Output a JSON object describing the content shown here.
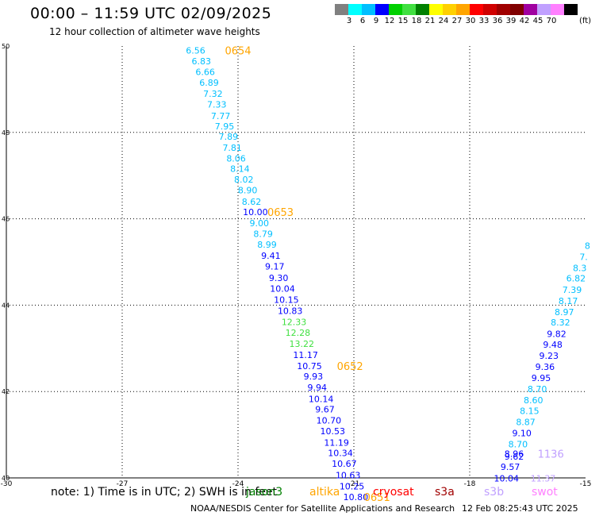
{
  "header": {
    "title": "00:00 – 11:59 UTC 02/09/2025",
    "subtitle": "12 hour collection of altimeter wave heights"
  },
  "colorbar": {
    "unit": "(ft)",
    "colors": [
      "#808080",
      "#00ffff",
      "#00bfff",
      "#0000ff",
      "#00d000",
      "#40e040",
      "#008000",
      "#ffff00",
      "#ffd000",
      "#ffa500",
      "#ff0000",
      "#d00000",
      "#a00000",
      "#800000",
      "#a000a0",
      "#c0a0ff",
      "#ff80ff",
      "#000000"
    ],
    "labels": [
      "3",
      "6",
      "9",
      "12",
      "15",
      "18",
      "21",
      "24",
      "27",
      "30",
      "33",
      "36",
      "39",
      "42",
      "45",
      "70"
    ]
  },
  "chart_data": {
    "type": "scatter",
    "xlim": [
      -30,
      -15
    ],
    "ylim": [
      40,
      50
    ],
    "x_ticks": [
      "-30",
      "-27",
      "-24",
      "-21",
      "-18",
      "-15"
    ],
    "y_ticks": [
      "50",
      "48",
      "46",
      "44",
      "42",
      "40"
    ],
    "grid": true,
    "tracks": [
      {
        "name": "track-west",
        "points": [
          {
            "x": -25.1,
            "y": 49.9,
            "v": "6.56",
            "c": "#00bfff"
          },
          {
            "x": -24.95,
            "y": 49.65,
            "v": "6.83",
            "c": "#00bfff"
          },
          {
            "x": -24.85,
            "y": 49.4,
            "v": "6.66",
            "c": "#00bfff"
          },
          {
            "x": -24.75,
            "y": 49.15,
            "v": "6.89",
            "c": "#00bfff"
          },
          {
            "x": -24.65,
            "y": 48.9,
            "v": "7.32",
            "c": "#00bfff"
          },
          {
            "x": -24.55,
            "y": 48.65,
            "v": "7.33",
            "c": "#00bfff"
          },
          {
            "x": -24.45,
            "y": 48.38,
            "v": "7.77",
            "c": "#00bfff"
          },
          {
            "x": -24.35,
            "y": 48.14,
            "v": "7.95",
            "c": "#00bfff"
          },
          {
            "x": -24.25,
            "y": 47.9,
            "v": "7.89",
            "c": "#00bfff"
          },
          {
            "x": -24.15,
            "y": 47.65,
            "v": "7.81",
            "c": "#00bfff"
          },
          {
            "x": -24.05,
            "y": 47.4,
            "v": "8.06",
            "c": "#00bfff"
          },
          {
            "x": -23.95,
            "y": 47.16,
            "v": "8.14",
            "c": "#00bfff"
          },
          {
            "x": -23.85,
            "y": 46.91,
            "v": "8.02",
            "c": "#00bfff"
          },
          {
            "x": -23.75,
            "y": 46.66,
            "v": "8.90",
            "c": "#00bfff"
          },
          {
            "x": -23.65,
            "y": 46.4,
            "v": "8.62",
            "c": "#00bfff"
          },
          {
            "x": -23.55,
            "y": 46.16,
            "v": "10.00",
            "c": "#0000ff"
          },
          {
            "x": -23.45,
            "y": 45.9,
            "v": "9.00",
            "c": "#00bfff"
          },
          {
            "x": -23.35,
            "y": 45.65,
            "v": "8.79",
            "c": "#00bfff"
          },
          {
            "x": -23.25,
            "y": 45.4,
            "v": "8.99",
            "c": "#00bfff"
          },
          {
            "x": -23.15,
            "y": 45.15,
            "v": "9.41",
            "c": "#0000ff"
          },
          {
            "x": -23.05,
            "y": 44.9,
            "v": "9.17",
            "c": "#0000ff"
          },
          {
            "x": -22.95,
            "y": 44.63,
            "v": "9.30",
            "c": "#0000ff"
          },
          {
            "x": -22.85,
            "y": 44.38,
            "v": "10.04",
            "c": "#0000ff"
          },
          {
            "x": -22.75,
            "y": 44.13,
            "v": "10.15",
            "c": "#0000ff"
          },
          {
            "x": -22.65,
            "y": 43.87,
            "v": "10.83",
            "c": "#0000ff"
          },
          {
            "x": -22.55,
            "y": 43.61,
            "v": "12.33",
            "c": "#40e040"
          },
          {
            "x": -22.45,
            "y": 43.36,
            "v": "12.28",
            "c": "#40e040"
          },
          {
            "x": -22.35,
            "y": 43.11,
            "v": "13.22",
            "c": "#40e040"
          },
          {
            "x": -22.25,
            "y": 42.85,
            "v": "11.17",
            "c": "#0000ff"
          },
          {
            "x": -22.15,
            "y": 42.59,
            "v": "10.75",
            "c": "#0000ff"
          },
          {
            "x": -22.05,
            "y": 42.35,
            "v": "9.93",
            "c": "#0000ff"
          },
          {
            "x": -21.95,
            "y": 42.1,
            "v": "9.94",
            "c": "#0000ff"
          },
          {
            "x": -21.85,
            "y": 41.83,
            "v": "10.14",
            "c": "#0000ff"
          },
          {
            "x": -21.75,
            "y": 41.59,
            "v": "9.67",
            "c": "#0000ff"
          },
          {
            "x": -21.65,
            "y": 41.33,
            "v": "10.70",
            "c": "#0000ff"
          },
          {
            "x": -21.55,
            "y": 41.08,
            "v": "10.53",
            "c": "#0000ff"
          },
          {
            "x": -21.45,
            "y": 40.82,
            "v": "11.19",
            "c": "#0000ff"
          },
          {
            "x": -21.35,
            "y": 40.58,
            "v": "10.34",
            "c": "#0000ff"
          },
          {
            "x": -21.25,
            "y": 40.33,
            "v": "10.67",
            "c": "#0000ff"
          },
          {
            "x": -21.15,
            "y": 40.06,
            "v": "10.63",
            "c": "#0000ff"
          },
          {
            "x": -21.05,
            "y": 39.81,
            "v": "10.25",
            "c": "#0000ff"
          },
          {
            "x": -20.95,
            "y": 39.56,
            "v": "10.80",
            "c": "#0000ff"
          }
        ],
        "time_labels": [
          {
            "x": -24.0,
            "y": 49.9,
            "t": "0654"
          },
          {
            "x": -22.9,
            "y": 46.16,
            "t": "0653"
          },
          {
            "x": -21.1,
            "y": 42.59,
            "t": "0652"
          },
          {
            "x": -20.4,
            "y": 39.56,
            "t": "0651"
          }
        ]
      },
      {
        "name": "track-east",
        "points": [
          {
            "x": -14.95,
            "y": 45.38,
            "v": "8",
            "c": "#00bfff"
          },
          {
            "x": -15.05,
            "y": 45.12,
            "v": "7.",
            "c": "#00bfff"
          },
          {
            "x": -15.15,
            "y": 44.86,
            "v": "8.3",
            "c": "#00bfff"
          },
          {
            "x": -15.25,
            "y": 44.62,
            "v": "6.82",
            "c": "#00bfff"
          },
          {
            "x": -15.35,
            "y": 44.36,
            "v": "7.39",
            "c": "#00bfff"
          },
          {
            "x": -15.45,
            "y": 44.1,
            "v": "8.17",
            "c": "#00bfff"
          },
          {
            "x": -15.55,
            "y": 43.84,
            "v": "8.97",
            "c": "#00bfff"
          },
          {
            "x": -15.65,
            "y": 43.6,
            "v": "8.32",
            "c": "#00bfff"
          },
          {
            "x": -15.75,
            "y": 43.34,
            "v": "9.82",
            "c": "#0000ff"
          },
          {
            "x": -15.85,
            "y": 43.09,
            "v": "9.48",
            "c": "#0000ff"
          },
          {
            "x": -15.95,
            "y": 42.83,
            "v": "9.23",
            "c": "#0000ff"
          },
          {
            "x": -16.05,
            "y": 42.57,
            "v": "9.36",
            "c": "#0000ff"
          },
          {
            "x": -16.15,
            "y": 42.32,
            "v": "9.95",
            "c": "#0000ff"
          },
          {
            "x": -16.25,
            "y": 42.06,
            "v": "8.70",
            "c": "#00bfff"
          },
          {
            "x": -16.35,
            "y": 41.8,
            "v": "8.60",
            "c": "#00bfff"
          },
          {
            "x": -16.45,
            "y": 41.55,
            "v": "8.15",
            "c": "#00bfff"
          },
          {
            "x": -16.55,
            "y": 41.3,
            "v": "8.87",
            "c": "#00bfff"
          },
          {
            "x": -16.65,
            "y": 41.04,
            "v": "9.10",
            "c": "#0000ff"
          },
          {
            "x": -16.75,
            "y": 40.78,
            "v": "8.70",
            "c": "#00bfff"
          },
          {
            "x": -16.85,
            "y": 40.56,
            "v": "8.96",
            "c": "#0000ff"
          },
          {
            "x": -16.85,
            "y": 40.5,
            "v": "9.62",
            "c": "#0000ff"
          },
          {
            "x": -16.95,
            "y": 40.26,
            "v": "9.57",
            "c": "#0000ff"
          },
          {
            "x": -17.05,
            "y": 39.99,
            "v": "10.04",
            "c": "#0000ff"
          },
          {
            "x": -16.1,
            "y": 39.99,
            "v": "11.37",
            "c": "#c0a0ff"
          }
        ],
        "time_labels": [
          {
            "x": -15.9,
            "y": 40.56,
            "t": "1136",
            "c": "#c0a0ff"
          }
        ]
      }
    ]
  },
  "footer": {
    "note": "note:  1) Time is in UTC; 2) SWH is in feet",
    "satellites": [
      {
        "name": "jason3",
        "color": "#008000"
      },
      {
        "name": "altika",
        "color": "#ffa500"
      },
      {
        "name": "cryosat",
        "color": "#ff0000"
      },
      {
        "name": "s3a",
        "color": "#a00000"
      },
      {
        "name": "s3b",
        "color": "#c0a0ff"
      },
      {
        "name": "swot",
        "color": "#ff80ff"
      }
    ],
    "credit": "NOAA/NESDIS Center for Satellite Applications and Research",
    "timestamp": "12 Feb 08:25:43 UTC 2025"
  }
}
